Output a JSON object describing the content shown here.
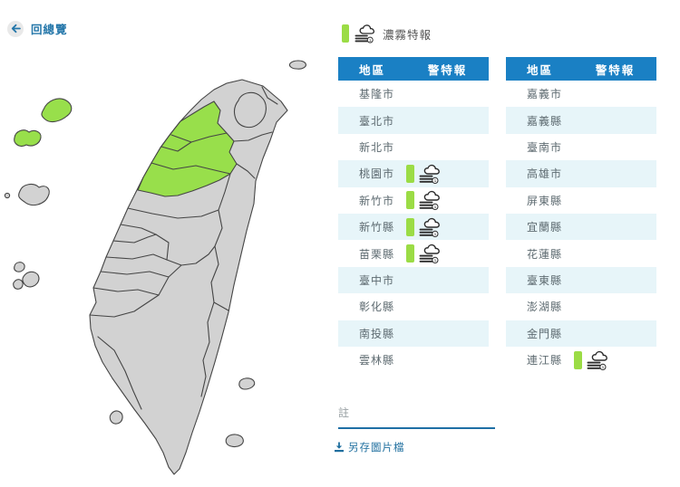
{
  "header": {
    "back_label": "回總覽"
  },
  "warning": {
    "type_label": "濃霧特報",
    "badge_count": "1"
  },
  "table": {
    "region_header": "地區",
    "warning_header": "警特報"
  },
  "left_table_rows": [
    {
      "region": "基隆市",
      "warnings": []
    },
    {
      "region": "臺北市",
      "warnings": []
    },
    {
      "region": "新北市",
      "warnings": []
    },
    {
      "region": "桃園市",
      "warnings": [
        "濃霧特報"
      ]
    },
    {
      "region": "新竹市",
      "warnings": [
        "濃霧特報"
      ]
    },
    {
      "region": "新竹縣",
      "warnings": [
        "濃霧特報"
      ]
    },
    {
      "region": "苗栗縣",
      "warnings": [
        "濃霧特報"
      ]
    },
    {
      "region": "臺中市",
      "warnings": []
    },
    {
      "region": "彰化縣",
      "warnings": []
    },
    {
      "region": "南投縣",
      "warnings": []
    },
    {
      "region": "雲林縣",
      "warnings": []
    }
  ],
  "right_table_rows": [
    {
      "region": "嘉義市",
      "warnings": []
    },
    {
      "region": "嘉義縣",
      "warnings": []
    },
    {
      "region": "臺南市",
      "warnings": []
    },
    {
      "region": "高雄市",
      "warnings": []
    },
    {
      "region": "屏東縣",
      "warnings": []
    },
    {
      "region": "宜蘭縣",
      "warnings": []
    },
    {
      "region": "花蓮縣",
      "warnings": []
    },
    {
      "region": "臺東縣",
      "warnings": []
    },
    {
      "region": "澎湖縣",
      "warnings": []
    },
    {
      "region": "金門縣",
      "warnings": []
    },
    {
      "region": "連江縣",
      "warnings": [
        "濃霧特報"
      ]
    }
  ],
  "footer": {
    "note_label": "註",
    "save_label": "另存圖片檔"
  },
  "map": {
    "highlighted_regions": [
      "桃園市",
      "新竹市",
      "新竹縣",
      "苗栗縣",
      "連江縣"
    ]
  },
  "colors": {
    "header_blue": "#1a80c4",
    "row_alt": "#e7f5f9",
    "link_blue": "#2577aa",
    "warning_green": "#9bdc45",
    "map_gray": "#d2d2d2",
    "map_green": "#98df4b"
  }
}
